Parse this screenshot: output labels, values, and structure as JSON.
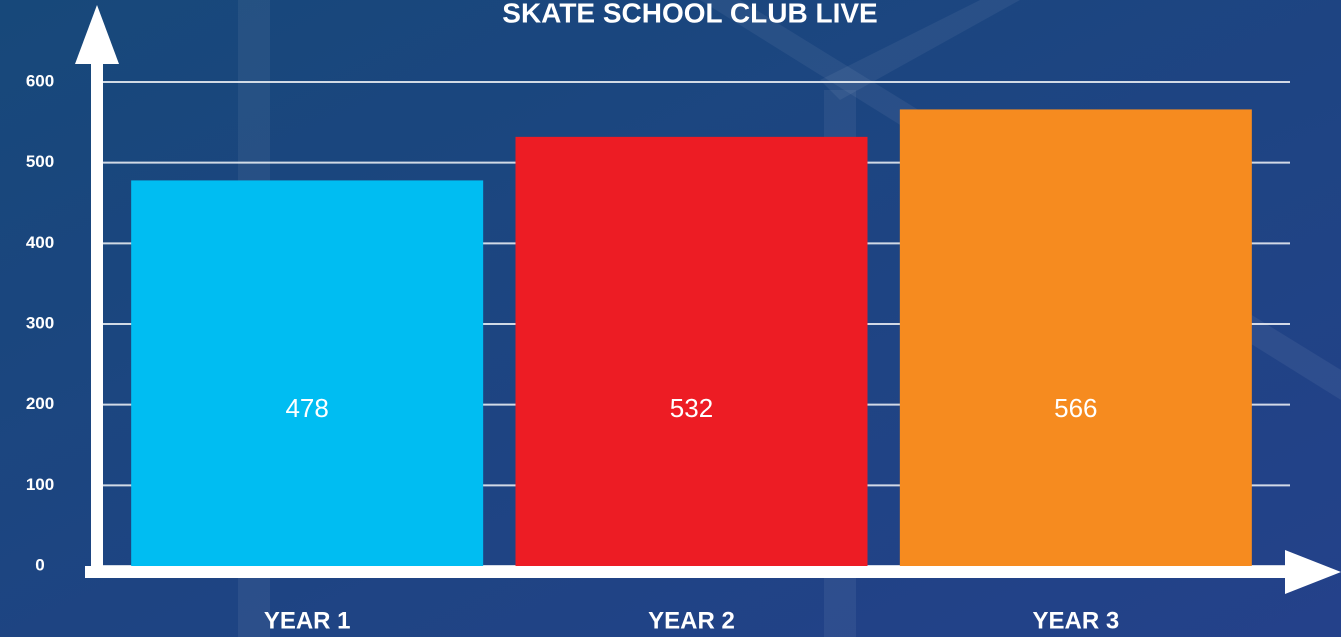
{
  "chart_data": {
    "type": "bar",
    "title": "SKATE SCHOOL CLUB LIVE",
    "categories": [
      "YEAR 1",
      "YEAR 2",
      "YEAR 3"
    ],
    "values": [
      478,
      532,
      566
    ],
    "colors": [
      "#00bdf2",
      "#ed1c24",
      "#f68b1f"
    ],
    "ylim": [
      0,
      600
    ],
    "yticks": [
      0,
      100,
      200,
      300,
      400,
      500,
      600
    ],
    "grid": true
  }
}
